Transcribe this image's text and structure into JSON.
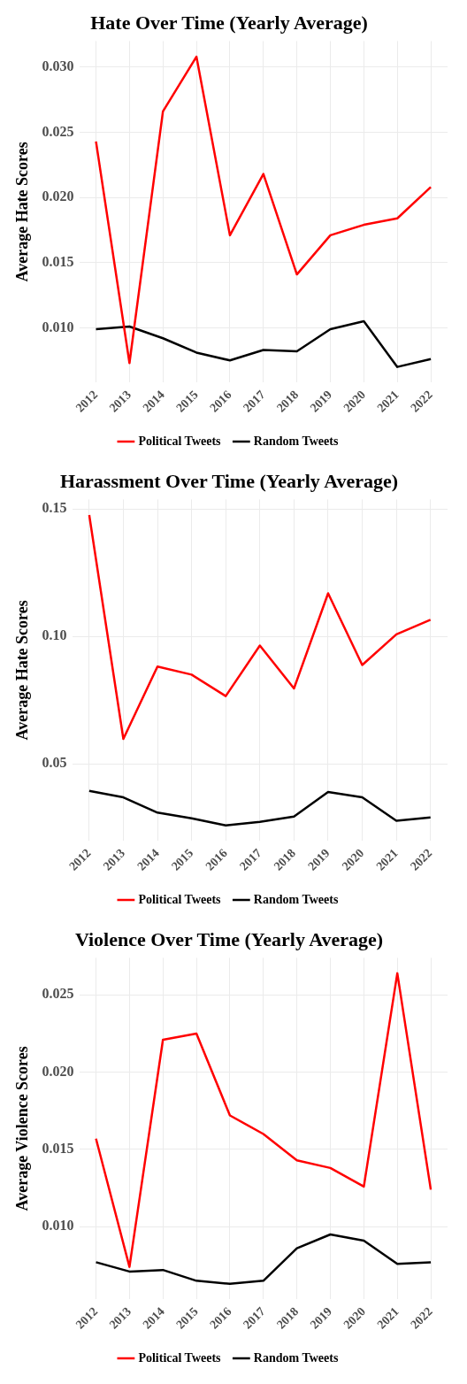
{
  "chart_data": [
    {
      "type": "line",
      "title": "Hate Over Time (Yearly Average)",
      "ylabel": "Average Hate Scores",
      "categories": [
        "2012",
        "2013",
        "2014",
        "2015",
        "2016",
        "2017",
        "2018",
        "2019",
        "2020",
        "2021",
        "2022"
      ],
      "series": [
        {
          "name": "Political Tweets",
          "color": "#ff0000",
          "values": [
            0.0243,
            0.0073,
            0.0266,
            0.0308,
            0.0171,
            0.0218,
            0.0141,
            0.0171,
            0.0179,
            0.0184,
            0.0208
          ]
        },
        {
          "name": "Random Tweets",
          "color": "#000000",
          "values": [
            0.0099,
            0.0101,
            0.0092,
            0.0081,
            0.0075,
            0.0083,
            0.0082,
            0.0099,
            0.0105,
            0.007,
            0.0076
          ]
        }
      ],
      "ylim": [
        0.0058,
        0.032
      ],
      "yticks": [
        {
          "value": 0.01,
          "label": "0.010"
        },
        {
          "value": 0.015,
          "label": "0.015"
        },
        {
          "value": 0.02,
          "label": "0.020"
        },
        {
          "value": 0.025,
          "label": "0.025"
        },
        {
          "value": 0.03,
          "label": "0.030"
        }
      ],
      "grid": true,
      "legend": "bottom",
      "marker": "none",
      "line_style": "solid"
    },
    {
      "type": "line",
      "title": "Harassment Over Time (Yearly Average)",
      "ylabel": "Average Hate Scores",
      "categories": [
        "2012",
        "2013",
        "2014",
        "2015",
        "2016",
        "2017",
        "2018",
        "2019",
        "2020",
        "2021",
        "2022"
      ],
      "series": [
        {
          "name": "Political Tweets",
          "color": "#ff0000",
          "values": [
            0.1476,
            0.0598,
            0.0882,
            0.085,
            0.0766,
            0.0964,
            0.0796,
            0.1169,
            0.0888,
            0.1008,
            0.1065
          ]
        },
        {
          "name": "Random Tweets",
          "color": "#000000",
          "values": [
            0.0394,
            0.0369,
            0.0309,
            0.0287,
            0.0259,
            0.0273,
            0.0294,
            0.039,
            0.0369,
            0.0277,
            0.029
          ]
        }
      ],
      "ylim": [
        0.0198,
        0.1537
      ],
      "yticks": [
        {
          "value": 0.05,
          "label": "0.05"
        },
        {
          "value": 0.1,
          "label": "0.10"
        },
        {
          "value": 0.15,
          "label": "0.15"
        }
      ],
      "grid": true,
      "legend": "bottom",
      "marker": "none",
      "line_style": "solid"
    },
    {
      "type": "line",
      "title": "Violence Over Time (Yearly Average)",
      "ylabel": "Average Violence Scores",
      "categories": [
        "2012",
        "2013",
        "2014",
        "2015",
        "2016",
        "2017",
        "2018",
        "2019",
        "2020",
        "2021",
        "2022"
      ],
      "series": [
        {
          "name": "Political Tweets",
          "color": "#ff0000",
          "values": [
            0.0157,
            0.0074,
            0.0221,
            0.0225,
            0.0172,
            0.016,
            0.0143,
            0.0138,
            0.0126,
            0.0264,
            0.0124
          ]
        },
        {
          "name": "Random Tweets",
          "color": "#000000",
          "values": [
            0.0077,
            0.0071,
            0.0072,
            0.0065,
            0.0063,
            0.0065,
            0.0086,
            0.0095,
            0.0091,
            0.0076,
            0.0077
          ]
        }
      ],
      "ylim": [
        0.0053,
        0.0274
      ],
      "yticks": [
        {
          "value": 0.01,
          "label": "0.010"
        },
        {
          "value": 0.015,
          "label": "0.015"
        },
        {
          "value": 0.02,
          "label": "0.020"
        },
        {
          "value": 0.025,
          "label": "0.025"
        }
      ],
      "grid": true,
      "legend": "bottom",
      "marker": "none",
      "line_style": "solid"
    }
  ]
}
